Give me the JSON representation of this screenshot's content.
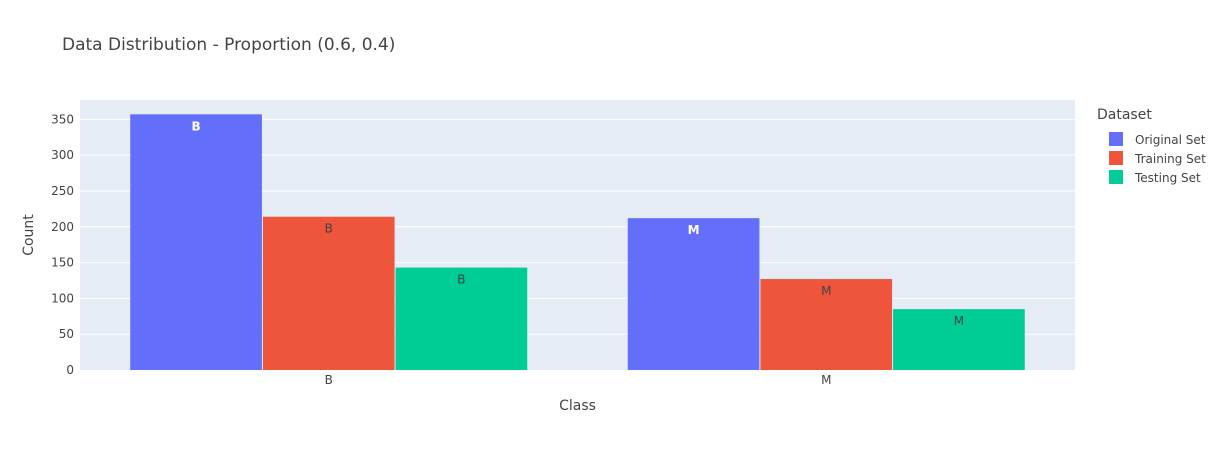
{
  "chart_data": {
    "type": "bar",
    "title": "Data Distribution - Proportion (0.6, 0.4)",
    "xlabel": "Class",
    "ylabel": "Count",
    "categories": [
      "B",
      "M"
    ],
    "ylim": [
      0,
      377
    ],
    "yticks": [
      0,
      50,
      100,
      150,
      200,
      250,
      300,
      350
    ],
    "grid": true,
    "legend": {
      "title": "Dataset",
      "placement": "right"
    },
    "series": [
      {
        "name": "Original Set",
        "color": "#636efa",
        "label_color": "#ffffff",
        "values": [
          357,
          212
        ],
        "labels": [
          "B",
          "M"
        ]
      },
      {
        "name": "Training Set",
        "color": "#ef553b",
        "label_color": "#444444",
        "values": [
          214,
          127
        ],
        "labels": [
          "B",
          "M"
        ]
      },
      {
        "name": "Testing Set",
        "color": "#00cc96",
        "label_color": "#444444",
        "values": [
          143,
          85
        ],
        "labels": [
          "B",
          "M"
        ]
      }
    ]
  }
}
